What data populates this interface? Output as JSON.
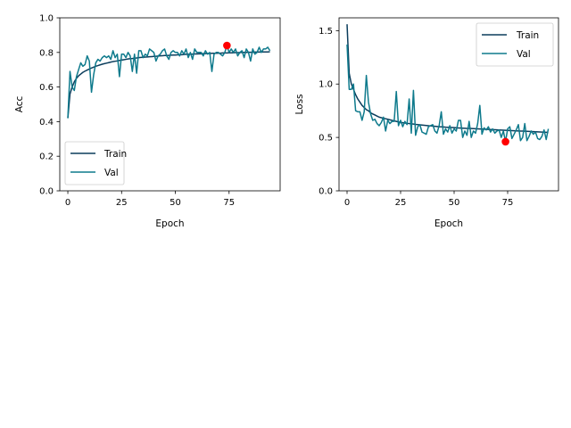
{
  "colors": {
    "train": "#0b3d5c",
    "val": "#0e7a8c",
    "best_marker": "#ff0000",
    "axes": "#000000",
    "legend_border": "#cccccc",
    "background": "#ffffff"
  },
  "chart_data": [
    {
      "type": "line",
      "xlabel": "Epoch",
      "ylabel": "Acc",
      "xlim": [
        -3.75,
        98.75
      ],
      "ylim": [
        0.0,
        1.0
      ],
      "xticks": [
        0,
        25,
        50,
        75
      ],
      "xtick_labels": [
        "0",
        "25",
        "50",
        "75"
      ],
      "yticks": [
        0.0,
        0.2,
        0.4,
        0.6,
        0.8,
        1.0
      ],
      "ytick_labels": [
        "0.0",
        "0.2",
        "0.4",
        "0.6",
        "0.8",
        "1.0"
      ],
      "grid": false,
      "legend_position": "lower-left",
      "series": [
        {
          "name": "Train",
          "color": "#0b3d5c",
          "values": [
            0.42,
            0.56,
            0.6,
            0.63,
            0.65,
            0.665,
            0.675,
            0.685,
            0.692,
            0.698,
            0.704,
            0.71,
            0.715,
            0.72,
            0.724,
            0.728,
            0.732,
            0.735,
            0.738,
            0.741,
            0.744,
            0.747,
            0.749,
            0.751,
            0.754,
            0.756,
            0.758,
            0.76,
            0.762,
            0.764,
            0.765,
            0.767,
            0.768,
            0.77,
            0.771,
            0.772,
            0.773,
            0.774,
            0.775,
            0.776,
            0.777,
            0.778,
            0.779,
            0.78,
            0.781,
            0.782,
            0.782,
            0.783,
            0.784,
            0.785,
            0.785,
            0.786,
            0.787,
            0.787,
            0.788,
            0.789,
            0.789,
            0.79,
            0.79,
            0.791,
            0.791,
            0.792,
            0.792,
            0.793,
            0.793,
            0.794,
            0.794,
            0.795,
            0.795,
            0.795,
            0.796,
            0.796,
            0.797,
            0.797,
            0.797,
            0.798,
            0.798,
            0.798,
            0.799,
            0.799,
            0.799,
            0.8,
            0.8,
            0.8,
            0.801,
            0.801,
            0.801,
            0.802,
            0.802,
            0.802,
            0.803,
            0.803,
            0.803,
            0.803,
            0.804
          ]
        },
        {
          "name": "Val",
          "color": "#0e7a8c",
          "values": [
            0.42,
            0.69,
            0.6,
            0.58,
            0.66,
            0.7,
            0.74,
            0.72,
            0.73,
            0.78,
            0.75,
            0.57,
            0.67,
            0.74,
            0.76,
            0.75,
            0.77,
            0.78,
            0.77,
            0.78,
            0.76,
            0.81,
            0.77,
            0.79,
            0.66,
            0.79,
            0.79,
            0.77,
            0.8,
            0.78,
            0.69,
            0.79,
            0.68,
            0.81,
            0.81,
            0.77,
            0.79,
            0.78,
            0.82,
            0.81,
            0.8,
            0.75,
            0.78,
            0.79,
            0.81,
            0.82,
            0.78,
            0.76,
            0.8,
            0.81,
            0.8,
            0.8,
            0.78,
            0.81,
            0.79,
            0.82,
            0.77,
            0.8,
            0.76,
            0.82,
            0.8,
            0.8,
            0.8,
            0.78,
            0.81,
            0.79,
            0.8,
            0.69,
            0.79,
            0.8,
            0.8,
            0.79,
            0.78,
            0.8,
            0.84,
            0.8,
            0.82,
            0.8,
            0.82,
            0.78,
            0.8,
            0.81,
            0.77,
            0.82,
            0.8,
            0.75,
            0.82,
            0.79,
            0.8,
            0.83,
            0.8,
            0.82,
            0.82,
            0.83,
            0.81
          ]
        }
      ],
      "best_point": {
        "x": 74,
        "y": 0.84
      }
    },
    {
      "type": "line",
      "xlabel": "Epoch",
      "ylabel": "Loss",
      "xlim": [
        -3.75,
        98.75
      ],
      "ylim": [
        0.0,
        1.62
      ],
      "xticks": [
        0,
        25,
        50,
        75
      ],
      "xtick_labels": [
        "0",
        "25",
        "50",
        "75"
      ],
      "yticks": [
        0.0,
        0.5,
        1.0,
        1.5
      ],
      "ytick_labels": [
        "0.0",
        "0.5",
        "1.0",
        "1.5"
      ],
      "grid": false,
      "legend_position": "top-right",
      "series": [
        {
          "name": "Train",
          "color": "#0b3d5c",
          "values": [
            1.56,
            1.1,
            1.0,
            0.95,
            0.9,
            0.86,
            0.83,
            0.8,
            0.78,
            0.76,
            0.75,
            0.73,
            0.72,
            0.71,
            0.7,
            0.69,
            0.685,
            0.68,
            0.675,
            0.67,
            0.665,
            0.66,
            0.655,
            0.65,
            0.645,
            0.64,
            0.638,
            0.635,
            0.632,
            0.63,
            0.627,
            0.625,
            0.622,
            0.62,
            0.618,
            0.616,
            0.614,
            0.612,
            0.61,
            0.608,
            0.606,
            0.604,
            0.602,
            0.6,
            0.599,
            0.598,
            0.596,
            0.595,
            0.594,
            0.593,
            0.592,
            0.59,
            0.589,
            0.588,
            0.587,
            0.586,
            0.585,
            0.584,
            0.583,
            0.582,
            0.581,
            0.58,
            0.579,
            0.578,
            0.577,
            0.576,
            0.575,
            0.574,
            0.573,
            0.572,
            0.571,
            0.57,
            0.569,
            0.568,
            0.567,
            0.566,
            0.565,
            0.564,
            0.563,
            0.562,
            0.561,
            0.56,
            0.559,
            0.558,
            0.557,
            0.556,
            0.555,
            0.554,
            0.553,
            0.552,
            0.551,
            0.55,
            0.549,
            0.548,
            0.547
          ]
        },
        {
          "name": "Val",
          "color": "#0e7a8c",
          "values": [
            1.37,
            0.95,
            0.95,
            1.0,
            0.75,
            0.74,
            0.74,
            0.66,
            0.74,
            1.08,
            0.83,
            0.72,
            0.66,
            0.67,
            0.63,
            0.61,
            0.64,
            0.69,
            0.56,
            0.66,
            0.63,
            0.65,
            0.65,
            0.93,
            0.61,
            0.66,
            0.6,
            0.65,
            0.62,
            0.86,
            0.54,
            0.94,
            0.52,
            0.6,
            0.62,
            0.55,
            0.54,
            0.53,
            0.6,
            0.61,
            0.62,
            0.56,
            0.54,
            0.61,
            0.74,
            0.53,
            0.58,
            0.55,
            0.61,
            0.54,
            0.58,
            0.56,
            0.66,
            0.66,
            0.5,
            0.56,
            0.52,
            0.65,
            0.5,
            0.56,
            0.54,
            0.63,
            0.8,
            0.53,
            0.59,
            0.57,
            0.6,
            0.55,
            0.58,
            0.54,
            0.56,
            0.57,
            0.5,
            0.56,
            0.46,
            0.58,
            0.6,
            0.49,
            0.53,
            0.57,
            0.62,
            0.47,
            0.5,
            0.63,
            0.47,
            0.51,
            0.56,
            0.53,
            0.55,
            0.49,
            0.48,
            0.51,
            0.57,
            0.48,
            0.58
          ]
        }
      ],
      "best_point": {
        "x": 74,
        "y": 0.46
      }
    }
  ]
}
